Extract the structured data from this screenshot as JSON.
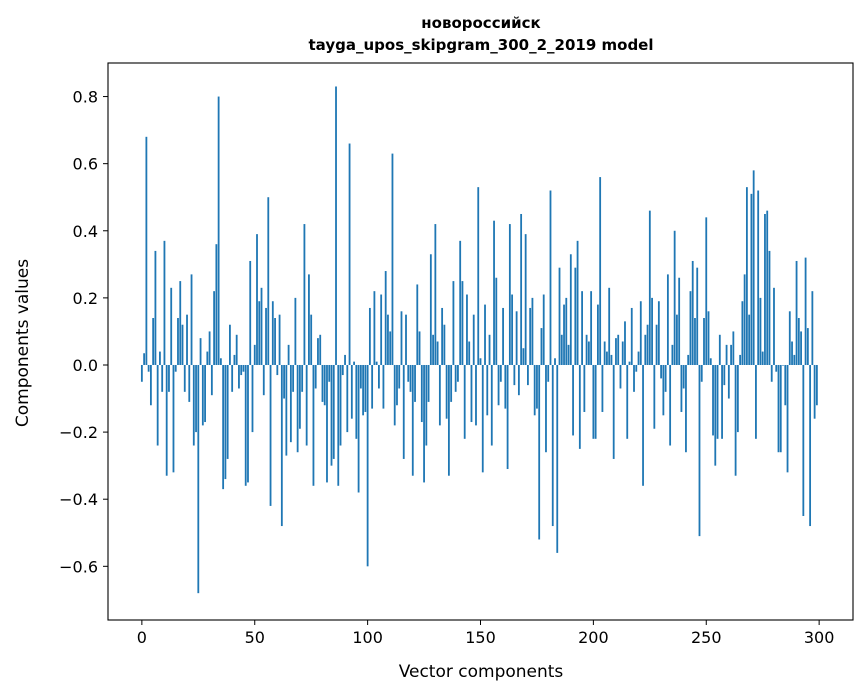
{
  "chart_data": {
    "type": "bar",
    "title": "новороссийск",
    "subtitle": "tayga_upos_skipgram_300_2_2019 model",
    "xlabel": "Vector components",
    "ylabel": "Components values",
    "xlim": [
      -15,
      315
    ],
    "ylim": [
      -0.76,
      0.9
    ],
    "xticks": [
      0,
      50,
      100,
      150,
      200,
      250,
      300
    ],
    "xtick_labels": [
      "0",
      "50",
      "100",
      "150",
      "200",
      "250",
      "300"
    ],
    "yticks": [
      -0.6,
      -0.4,
      -0.2,
      0.0,
      0.2,
      0.4,
      0.6,
      0.8
    ],
    "ytick_labels": [
      "−0.6",
      "−0.4",
      "−0.2",
      "0.0",
      "0.2",
      "0.4",
      "0.6",
      "0.8"
    ],
    "grid": false,
    "bar_color": "#1f77b4",
    "x": [
      0,
      1,
      2,
      3,
      4,
      5,
      6,
      7,
      8,
      9,
      10,
      11,
      12,
      13,
      14,
      15,
      16,
      17,
      18,
      19,
      20,
      21,
      22,
      23,
      24,
      25,
      26,
      27,
      28,
      29,
      30,
      31,
      32,
      33,
      34,
      35,
      36,
      37,
      38,
      39,
      40,
      41,
      42,
      43,
      44,
      45,
      46,
      47,
      48,
      49,
      50,
      51,
      52,
      53,
      54,
      55,
      56,
      57,
      58,
      59,
      60,
      61,
      62,
      63,
      64,
      65,
      66,
      67,
      68,
      69,
      70,
      71,
      72,
      73,
      74,
      75,
      76,
      77,
      78,
      79,
      80,
      81,
      82,
      83,
      84,
      85,
      86,
      87,
      88,
      89,
      90,
      91,
      92,
      93,
      94,
      95,
      96,
      97,
      98,
      99,
      100,
      101,
      102,
      103,
      104,
      105,
      106,
      107,
      108,
      109,
      110,
      111,
      112,
      113,
      114,
      115,
      116,
      117,
      118,
      119,
      120,
      121,
      122,
      123,
      124,
      125,
      126,
      127,
      128,
      129,
      130,
      131,
      132,
      133,
      134,
      135,
      136,
      137,
      138,
      139,
      140,
      141,
      142,
      143,
      144,
      145,
      146,
      147,
      148,
      149,
      150,
      151,
      152,
      153,
      154,
      155,
      156,
      157,
      158,
      159,
      160,
      161,
      162,
      163,
      164,
      165,
      166,
      167,
      168,
      169,
      170,
      171,
      172,
      173,
      174,
      175,
      176,
      177,
      178,
      179,
      180,
      181,
      182,
      183,
      184,
      185,
      186,
      187,
      188,
      189,
      190,
      191,
      192,
      193,
      194,
      195,
      196,
      197,
      198,
      199,
      200,
      201,
      202,
      203,
      204,
      205,
      206,
      207,
      208,
      209,
      210,
      211,
      212,
      213,
      214,
      215,
      216,
      217,
      218,
      219,
      220,
      221,
      222,
      223,
      224,
      225,
      226,
      227,
      228,
      229,
      230,
      231,
      232,
      233,
      234,
      235,
      236,
      237,
      238,
      239,
      240,
      241,
      242,
      243,
      244,
      245,
      246,
      247,
      248,
      249,
      250,
      251,
      252,
      253,
      254,
      255,
      256,
      257,
      258,
      259,
      260,
      261,
      262,
      263,
      264,
      265,
      266,
      267,
      268,
      269,
      270,
      271,
      272,
      273,
      274,
      275,
      276,
      277,
      278,
      279,
      280,
      281,
      282,
      283,
      284,
      285,
      286,
      287,
      288,
      289,
      290,
      291,
      292,
      293,
      294,
      295,
      296,
      297,
      298,
      299
    ],
    "values": [
      -0.05,
      0.035,
      0.68,
      -0.02,
      -0.12,
      0.14,
      0.34,
      -0.24,
      0.04,
      -0.08,
      0.37,
      -0.33,
      -0.08,
      0.23,
      -0.32,
      -0.02,
      0.14,
      0.25,
      0.12,
      -0.08,
      0.15,
      -0.11,
      0.27,
      -0.24,
      -0.2,
      -0.68,
      0.08,
      -0.18,
      -0.17,
      0.04,
      0.1,
      -0.09,
      0.22,
      0.36,
      0.8,
      0.02,
      -0.37,
      -0.34,
      -0.28,
      0.12,
      -0.08,
      0.03,
      0.09,
      -0.07,
      -0.03,
      -0.02,
      -0.36,
      -0.35,
      0.31,
      -0.2,
      0.06,
      0.39,
      0.19,
      0.23,
      -0.09,
      0.17,
      0.5,
      -0.42,
      0.19,
      0.14,
      -0.03,
      0.15,
      -0.48,
      -0.1,
      -0.27,
      0.06,
      -0.23,
      -0.08,
      0.2,
      -0.26,
      -0.19,
      -0.08,
      0.42,
      -0.24,
      0.27,
      0.15,
      -0.36,
      -0.07,
      0.08,
      0.09,
      -0.11,
      -0.12,
      -0.35,
      -0.05,
      -0.3,
      -0.28,
      0.83,
      -0.36,
      -0.24,
      -0.03,
      0.03,
      -0.2,
      0.66,
      -0.16,
      0.01,
      -0.22,
      -0.38,
      -0.07,
      -0.15,
      -0.14,
      -0.6,
      0.17,
      -0.13,
      0.22,
      0.01,
      -0.07,
      0.21,
      -0.13,
      0.28,
      0.15,
      0.1,
      0.63,
      -0.18,
      -0.12,
      -0.07,
      0.16,
      -0.28,
      0.15,
      -0.05,
      -0.08,
      -0.33,
      -0.11,
      0.24,
      0.1,
      -0.17,
      -0.35,
      -0.24,
      -0.11,
      0.33,
      0.09,
      0.42,
      0.07,
      -0.18,
      0.17,
      0.12,
      -0.16,
      -0.33,
      -0.11,
      0.25,
      -0.08,
      -0.05,
      0.37,
      0.25,
      -0.22,
      0.21,
      0.07,
      -0.17,
      0.15,
      -0.18,
      0.53,
      0.02,
      -0.32,
      0.18,
      -0.15,
      0.09,
      -0.24,
      0.43,
      0.26,
      -0.12,
      -0.05,
      0.17,
      -0.13,
      -0.31,
      0.42,
      0.21,
      -0.06,
      0.16,
      -0.09,
      0.45,
      0.05,
      0.39,
      -0.06,
      0.17,
      0.2,
      -0.15,
      -0.13,
      -0.52,
      0.11,
      0.21,
      -0.26,
      -0.05,
      0.52,
      -0.48,
      0.02,
      -0.56,
      0.29,
      0.09,
      0.18,
      0.2,
      0.06,
      0.33,
      -0.21,
      0.29,
      0.37,
      -0.25,
      0.22,
      -0.14,
      0.09,
      0.07,
      0.22,
      -0.22,
      -0.22,
      0.18,
      0.56,
      -0.14,
      0.07,
      0.04,
      0.23,
      0.03,
      -0.28,
      0.08,
      0.09,
      -0.07,
      0.07,
      0.13,
      -0.22,
      0.01,
      0.17,
      -0.08,
      -0.02,
      0.04,
      0.19,
      -0.36,
      0.09,
      0.12,
      0.46,
      0.2,
      -0.19,
      0.12,
      0.19,
      -0.04,
      -0.15,
      -0.08,
      0.27,
      -0.24,
      0.06,
      0.4,
      0.15,
      0.26,
      -0.14,
      -0.07,
      -0.26,
      0.03,
      0.22,
      0.31,
      0.14,
      0.29,
      -0.51,
      -0.05,
      0.14,
      0.44,
      0.16,
      0.02,
      -0.21,
      -0.3,
      -0.22,
      0.09,
      -0.22,
      -0.06,
      0.06,
      -0.1,
      0.06,
      0.1,
      -0.33,
      -0.2,
      0.03,
      0.19,
      0.27,
      0.53,
      0.15,
      0.51,
      0.58,
      -0.22,
      0.52,
      0.2,
      0.04,
      0.45,
      0.46,
      0.34,
      -0.05,
      0.23,
      -0.02,
      -0.26,
      -0.26,
      0.0,
      -0.12,
      -0.32,
      0.16,
      0.07,
      0.03,
      0.31,
      0.14,
      0.1,
      -0.45,
      0.32,
      0.11,
      -0.48,
      0.22,
      -0.16,
      -0.12
    ]
  }
}
